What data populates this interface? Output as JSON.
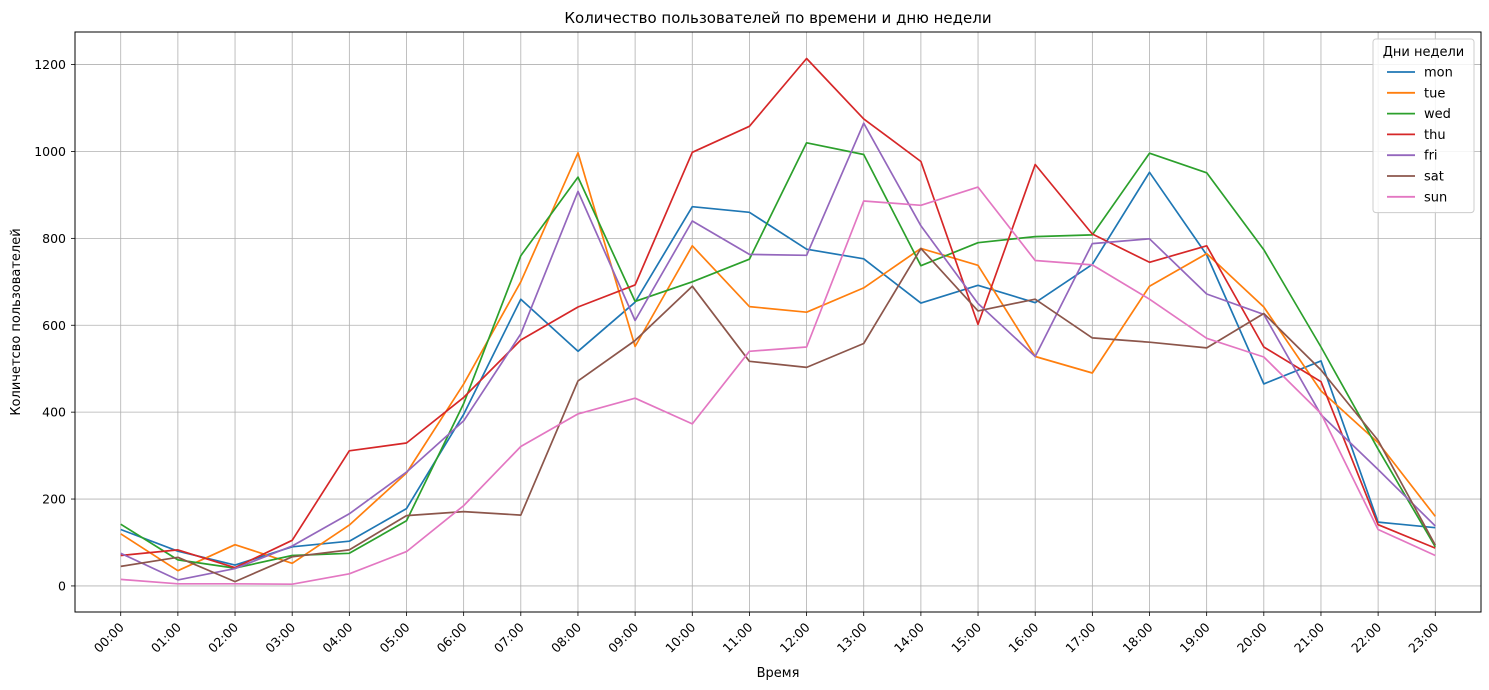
{
  "chart_data": {
    "type": "line",
    "title": "Количество пользователей по времени и дню недели",
    "xlabel": "Время",
    "ylabel": "Количетсво пользователей",
    "categories": [
      "00:00",
      "01:00",
      "02:00",
      "03:00",
      "04:00",
      "05:00",
      "06:00",
      "07:00",
      "08:00",
      "09:00",
      "10:00",
      "11:00",
      "12:00",
      "13:00",
      "14:00",
      "15:00",
      "16:00",
      "17:00",
      "18:00",
      "19:00",
      "20:00",
      "21:00",
      "22:00",
      "23:00"
    ],
    "ylim": [
      -60,
      1275
    ],
    "yticks": [
      0,
      200,
      400,
      600,
      800,
      1000,
      1200
    ],
    "grid": true,
    "legend_title": "Дни недели",
    "legend_position": "top-right",
    "series": [
      {
        "name": "mon",
        "color": "#1f77b4",
        "values": [
          130,
          80,
          48,
          90,
          103,
          178,
          395,
          660,
          540,
          653,
          873,
          860,
          775,
          753,
          651,
          692,
          652,
          740,
          952,
          762,
          465,
          518,
          147,
          134
        ]
      },
      {
        "name": "tue",
        "color": "#ff7f0e",
        "values": [
          120,
          35,
          95,
          52,
          140,
          260,
          465,
          700,
          997,
          551,
          783,
          643,
          630,
          686,
          777,
          738,
          528,
          490,
          690,
          765,
          642,
          449,
          330,
          160
        ]
      },
      {
        "name": "wed",
        "color": "#2ca02c",
        "values": [
          142,
          60,
          41,
          70,
          75,
          150,
          420,
          760,
          941,
          655,
          700,
          752,
          1020,
          993,
          737,
          790,
          804,
          808,
          996,
          951,
          774,
          550,
          315,
          90
        ]
      },
      {
        "name": "thu",
        "color": "#d62728",
        "values": [
          70,
          83,
          42,
          105,
          311,
          329,
          434,
          566,
          642,
          693,
          998,
          1058,
          1214,
          1075,
          977,
          602,
          970,
          810,
          745,
          783,
          550,
          470,
          141,
          87
        ]
      },
      {
        "name": "fri",
        "color": "#9467bd",
        "values": [
          75,
          14,
          40,
          92,
          166,
          262,
          380,
          580,
          908,
          611,
          840,
          763,
          761,
          1065,
          829,
          650,
          528,
          788,
          799,
          672,
          625,
          394,
          268,
          138
        ]
      },
      {
        "name": "sat",
        "color": "#8c564b",
        "values": [
          45,
          66,
          10,
          67,
          83,
          162,
          171,
          163,
          472,
          565,
          690,
          517,
          503,
          558,
          777,
          633,
          660,
          571,
          561,
          548,
          627,
          497,
          335,
          94
        ]
      },
      {
        "name": "sun",
        "color": "#e377c2",
        "values": [
          15,
          5,
          5,
          4,
          28,
          79,
          185,
          321,
          396,
          432,
          373,
          540,
          550,
          886,
          876,
          918,
          749,
          739,
          660,
          570,
          527,
          397,
          130,
          70
        ]
      }
    ]
  }
}
